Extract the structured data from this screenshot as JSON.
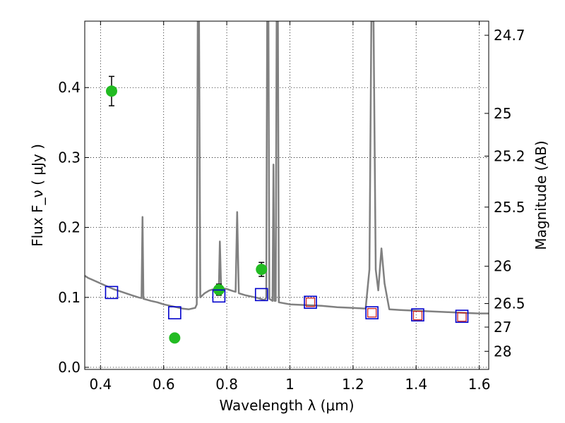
{
  "chart_data": {
    "type": "scatter",
    "title": "",
    "xlabel": "Wavelength  λ (μm)",
    "ylabel": "Flux  F_ν  ( μJy )",
    "ylabel_right": "Magnitude (AB)",
    "xlim": [
      0.35,
      1.63
    ],
    "ylim": [
      -0.003,
      0.495
    ],
    "grid": true,
    "x_ticks": [
      0.4,
      0.6,
      0.8,
      1.0,
      1.2,
      1.4,
      1.6
    ],
    "x_tick_labels": [
      "0.4",
      "0.6",
      "0.8",
      "1",
      "1.2",
      "1.4",
      "1.6"
    ],
    "y_ticks": [
      0.0,
      0.1,
      0.2,
      0.3,
      0.4
    ],
    "y_tick_labels": [
      "0.0",
      "0.1",
      "0.2",
      "0.3",
      "0.4"
    ],
    "right_ticks": [
      {
        "flux": 0.4748,
        "label": "24.7"
      },
      {
        "flux": 0.3631,
        "label": "25"
      },
      {
        "flux": 0.302,
        "label": "25.2"
      },
      {
        "flux": 0.2291,
        "label": "25.5"
      },
      {
        "flux": 0.1445,
        "label": "26"
      },
      {
        "flux": 0.0912,
        "label": "26.5"
      },
      {
        "flux": 0.0575,
        "label": "27"
      },
      {
        "flux": 0.0229,
        "label": "28"
      }
    ],
    "series": [
      {
        "kind": "line",
        "color": "#808080",
        "points": [
          [
            0.35,
            0.131
          ],
          [
            0.36,
            0.128
          ],
          [
            0.37,
            0.126
          ],
          [
            0.38,
            0.124
          ],
          [
            0.39,
            0.122
          ],
          [
            0.4,
            0.12
          ],
          [
            0.42,
            0.116
          ],
          [
            0.44,
            0.112
          ],
          [
            0.46,
            0.109
          ],
          [
            0.48,
            0.106
          ],
          [
            0.5,
            0.103
          ],
          [
            0.52,
            0.1
          ],
          [
            0.53,
            0.099
          ],
          [
            0.533,
            0.215
          ],
          [
            0.536,
            0.098
          ],
          [
            0.56,
            0.095
          ],
          [
            0.58,
            0.093
          ],
          [
            0.6,
            0.09
          ],
          [
            0.62,
            0.088
          ],
          [
            0.64,
            0.086
          ],
          [
            0.66,
            0.084
          ],
          [
            0.68,
            0.083
          ],
          [
            0.7,
            0.085
          ],
          [
            0.705,
            0.09
          ],
          [
            0.708,
            0.495
          ],
          [
            0.712,
            0.495
          ],
          [
            0.716,
            0.1
          ],
          [
            0.73,
            0.106
          ],
          [
            0.745,
            0.11
          ],
          [
            0.76,
            0.112
          ],
          [
            0.775,
            0.113
          ],
          [
            0.778,
            0.18
          ],
          [
            0.782,
            0.113
          ],
          [
            0.8,
            0.112
          ],
          [
            0.82,
            0.109
          ],
          [
            0.828,
            0.108
          ],
          [
            0.833,
            0.222
          ],
          [
            0.838,
            0.106
          ],
          [
            0.86,
            0.103
          ],
          [
            0.88,
            0.101
          ],
          [
            0.9,
            0.099
          ],
          [
            0.92,
            0.096
          ],
          [
            0.925,
            0.1
          ],
          [
            0.928,
            0.495
          ],
          [
            0.932,
            0.495
          ],
          [
            0.935,
            0.098
          ],
          [
            0.945,
            0.095
          ],
          [
            0.948,
            0.29
          ],
          [
            0.951,
            0.095
          ],
          [
            0.955,
            0.095
          ],
          [
            0.958,
            0.495
          ],
          [
            0.962,
            0.495
          ],
          [
            0.965,
            0.093
          ],
          [
            1.0,
            0.09
          ],
          [
            1.05,
            0.089
          ],
          [
            1.1,
            0.088
          ],
          [
            1.15,
            0.086
          ],
          [
            1.2,
            0.085
          ],
          [
            1.24,
            0.084
          ],
          [
            1.252,
            0.14
          ],
          [
            1.258,
            0.495
          ],
          [
            1.265,
            0.495
          ],
          [
            1.272,
            0.14
          ],
          [
            1.28,
            0.11
          ],
          [
            1.29,
            0.17
          ],
          [
            1.3,
            0.12
          ],
          [
            1.315,
            0.083
          ],
          [
            1.35,
            0.082
          ],
          [
            1.4,
            0.081
          ],
          [
            1.45,
            0.08
          ],
          [
            1.5,
            0.079
          ],
          [
            1.55,
            0.078
          ],
          [
            1.6,
            0.077
          ],
          [
            1.63,
            0.077
          ]
        ]
      },
      {
        "kind": "errorbar",
        "color": "#22bb22",
        "points": [
          {
            "x": 0.435,
            "y": 0.395,
            "err": 0.021
          },
          {
            "x": 0.635,
            "y": 0.042,
            "err": 0.005
          },
          {
            "x": 0.775,
            "y": 0.111,
            "err": 0.008
          },
          {
            "x": 0.91,
            "y": 0.14,
            "err": 0.01
          }
        ]
      },
      {
        "kind": "open-square",
        "color": "#0000cc",
        "points": [
          [
            0.435,
            0.107
          ],
          [
            0.635,
            0.078
          ],
          [
            0.775,
            0.102
          ],
          [
            0.91,
            0.104
          ],
          [
            1.065,
            0.093
          ],
          [
            1.26,
            0.078
          ],
          [
            1.405,
            0.075
          ],
          [
            1.545,
            0.073
          ]
        ]
      },
      {
        "kind": "open-square-small",
        "color": "#cc2222",
        "points": [
          [
            1.065,
            0.093
          ],
          [
            1.26,
            0.078
          ],
          [
            1.405,
            0.074
          ],
          [
            1.545,
            0.072
          ]
        ]
      }
    ]
  }
}
